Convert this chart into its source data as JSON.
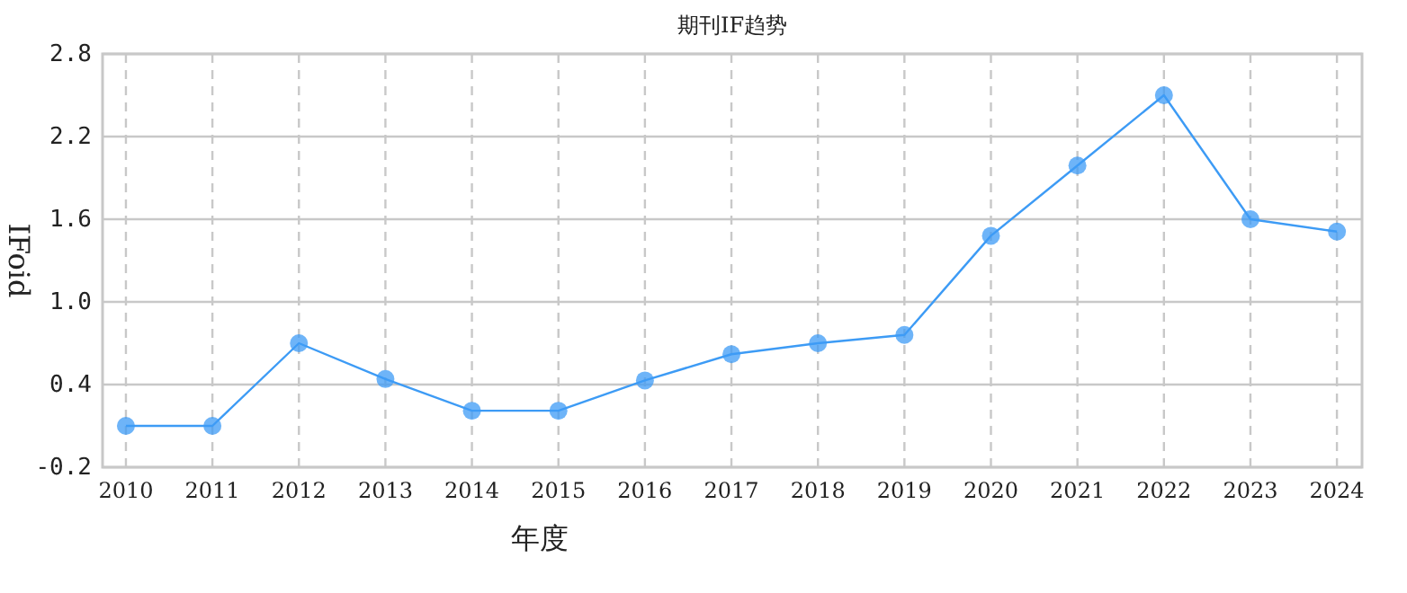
{
  "chart_data": {
    "type": "line",
    "title": "期刊IF趋势",
    "xlabel": "年度",
    "ylabel": "IFoid",
    "categories": [
      "2010",
      "2011",
      "2012",
      "2013",
      "2014",
      "2015",
      "2016",
      "2017",
      "2018",
      "2019",
      "2020",
      "2021",
      "2022",
      "2023",
      "2024"
    ],
    "series": [
      {
        "color": "#3d9bf5",
        "values": [
          0.1,
          0.1,
          0.7,
          0.44,
          0.21,
          0.21,
          0.43,
          0.62,
          0.7,
          0.76,
          1.48,
          1.99,
          2.5,
          1.6,
          1.51
        ]
      }
    ],
    "ylim": [
      -0.2,
      2.8
    ],
    "yticks": [
      -0.2,
      0.4,
      {
        "value": 1,
        "label": "1.0"
      },
      1.6,
      2.2,
      2.8
    ],
    "grid": true,
    "marker": "circle",
    "line_style": "solid"
  }
}
